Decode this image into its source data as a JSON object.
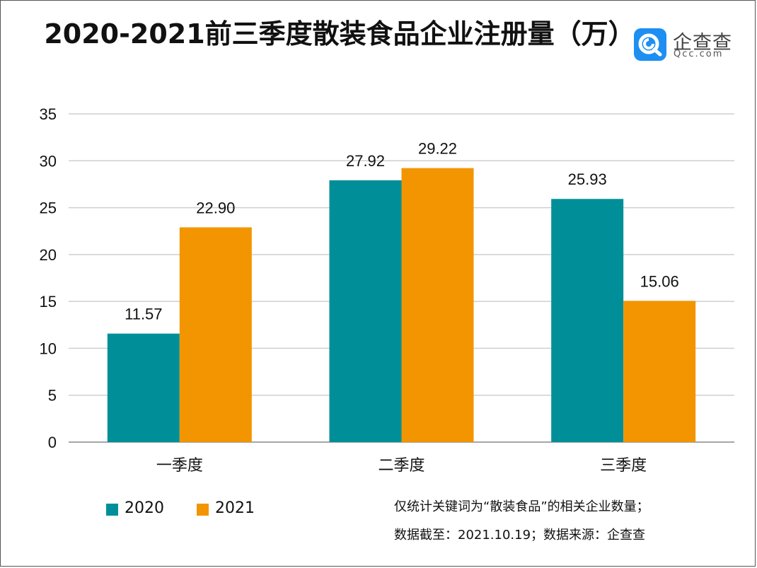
{
  "title": "2020-2021前三季度散装食品企业注册量（万）",
  "logo": {
    "name": "企查查",
    "sub": "Qcc.com"
  },
  "colors": {
    "s2020": "#008f98",
    "s2021": "#f29500",
    "grid": "#cfcfcf",
    "axis": "#888888"
  },
  "notes": [
    "仅统计关键词为“散装食品”的相关企业数量；",
    "数据截至：2021.10.19；数据来源：企查查"
  ],
  "chart_data": {
    "type": "bar",
    "title": "2020-2021前三季度散装食品企业注册量（万）",
    "categories": [
      "一季度",
      "二季度",
      "三季度"
    ],
    "series": [
      {
        "name": "2020",
        "values": [
          11.57,
          27.92,
          25.93
        ]
      },
      {
        "name": "2021",
        "values": [
          22.9,
          29.22,
          15.06
        ]
      }
    ],
    "data_labels": [
      [
        "11.57",
        "27.92",
        "25.93"
      ],
      [
        "22.90",
        "29.22",
        "15.06"
      ]
    ],
    "ylim": [
      0,
      35
    ],
    "yticks": [
      0,
      5,
      10,
      15,
      20,
      25,
      30,
      35
    ],
    "grid": true,
    "legend": "bottom-left",
    "xlabel": "",
    "ylabel": ""
  }
}
